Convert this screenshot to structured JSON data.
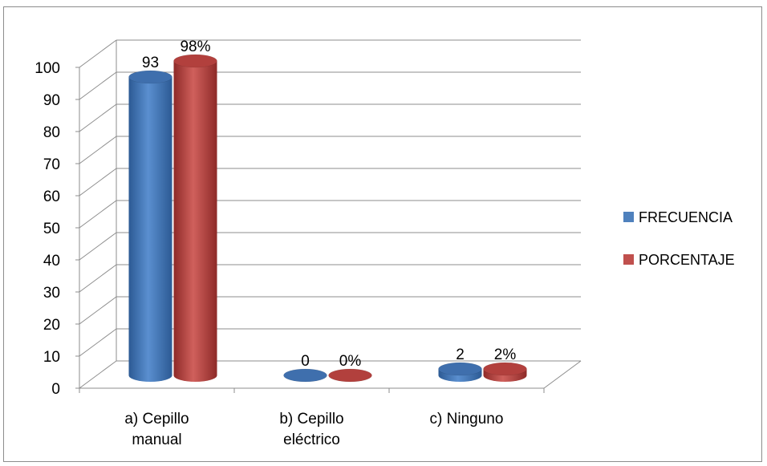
{
  "chart_data": {
    "type": "bar",
    "title": "",
    "xlabel": "",
    "ylabel": "",
    "ylim": [
      0,
      100
    ],
    "yticks": [
      0,
      10,
      20,
      30,
      40,
      50,
      60,
      70,
      80,
      90,
      100
    ],
    "categories": [
      [
        "a) Cepillo",
        "manual"
      ],
      [
        "b) Cepillo",
        "eléctrico"
      ],
      [
        "c) Ninguno"
      ]
    ],
    "series": [
      {
        "name": "FRECUENCIA",
        "values": [
          93,
          0,
          2
        ],
        "labels": [
          "93",
          "0",
          "2"
        ],
        "color": "#4f81bd"
      },
      {
        "name": "PORCENTAJE",
        "values": [
          98,
          0,
          2
        ],
        "labels": [
          "98%",
          "0%",
          "2%"
        ],
        "color": "#c0504d"
      }
    ],
    "grid": true,
    "legend_position": "right",
    "style": "3d-cylinder"
  }
}
